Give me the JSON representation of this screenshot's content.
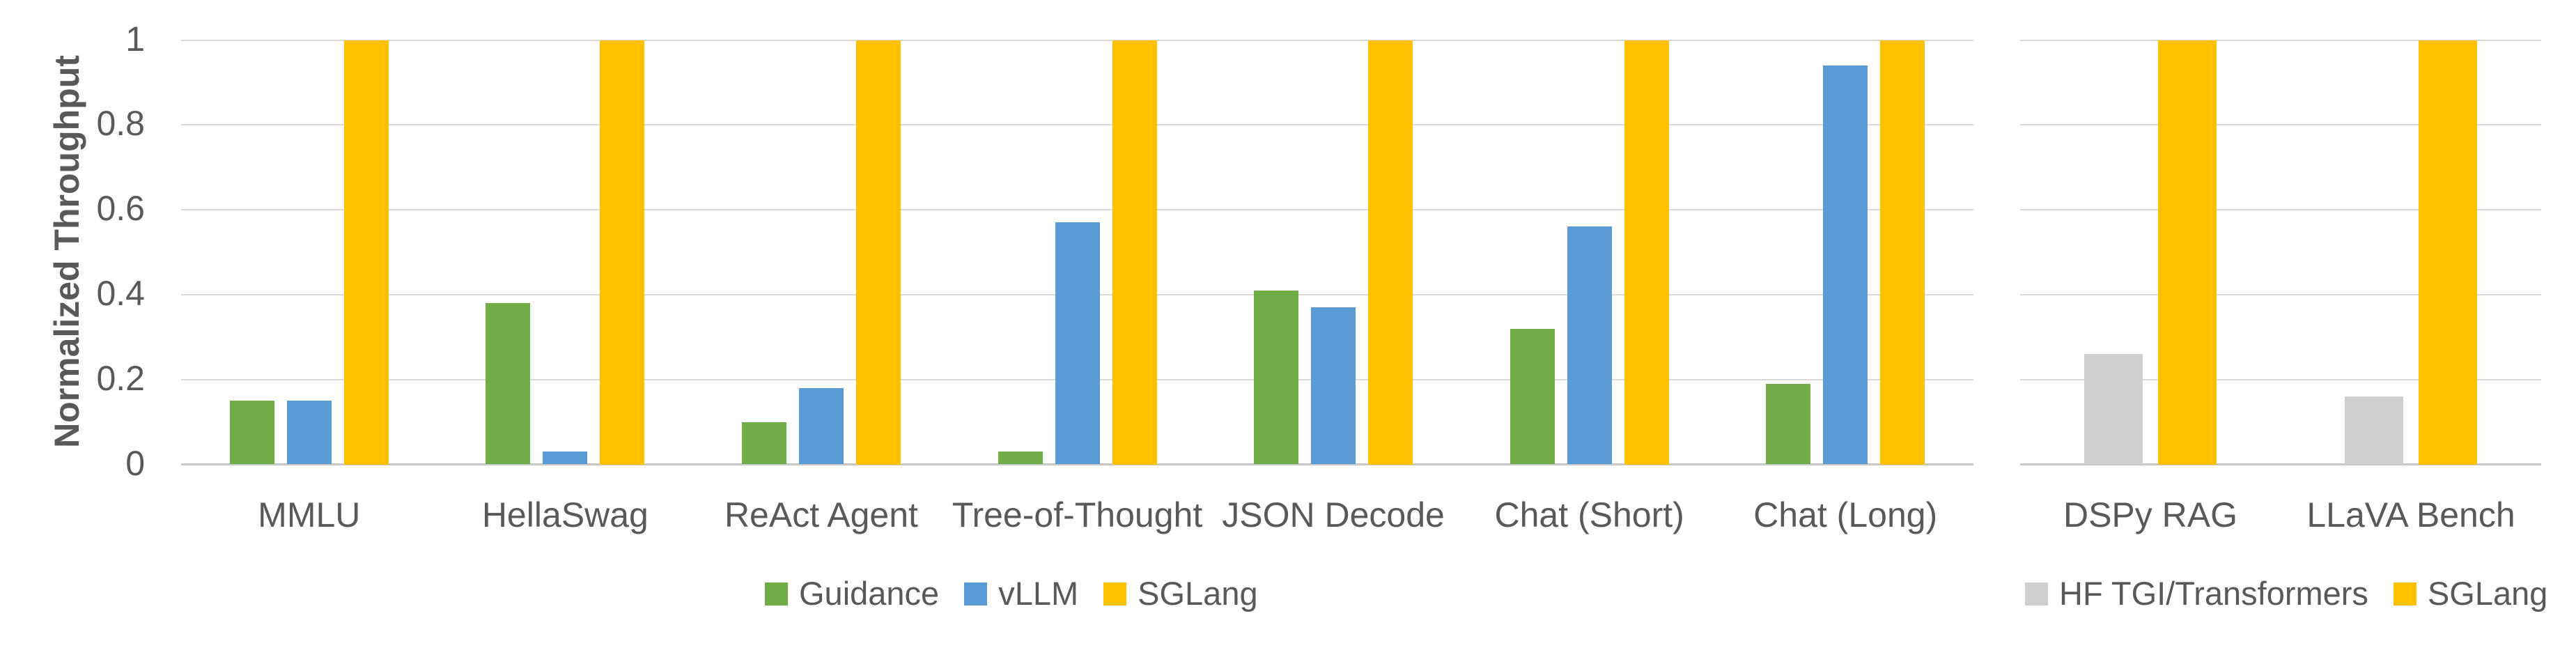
{
  "figure": {
    "background": "#FFFFFF",
    "text_color": "#595959",
    "gridline_color": "#D9D9D9",
    "axis_line_color": "#C8C8C8"
  },
  "chart_data": [
    {
      "type": "bar",
      "title": "",
      "categories": [
        "MMLU",
        "HellaSwag",
        "ReAct Agent",
        "Tree-of-Thought",
        "JSON Decode",
        "Chat (Short)",
        "Chat (Long)"
      ],
      "series": [
        {
          "name": "Guidance",
          "color": "#70AD47",
          "values": [
            0.15,
            0.38,
            0.1,
            0.03,
            0.41,
            0.32,
            0.19
          ]
        },
        {
          "name": "vLLM",
          "color": "#5B9BD5",
          "values": [
            0.15,
            0.03,
            0.18,
            0.57,
            0.37,
            0.56,
            0.94
          ]
        },
        {
          "name": "SGLang",
          "color": "#FFC000",
          "values": [
            1,
            1,
            1,
            1,
            1,
            1,
            1
          ]
        }
      ],
      "xlabel": "",
      "ylabel": "Normalized Throughput",
      "ylim": [
        0,
        1
      ],
      "yticks": [
        0,
        0.2,
        0.4,
        0.6,
        0.8,
        1
      ],
      "ytick_labels": [
        "0",
        "0.2",
        "0.4",
        "0.6",
        "0.8",
        "1"
      ],
      "grid": true,
      "legend_position": "bottom"
    },
    {
      "type": "bar",
      "title": "",
      "categories": [
        "DSPy RAG",
        "LLaVA Bench"
      ],
      "series": [
        {
          "name": "HF TGI/Transformers",
          "color": "#D0CECE",
          "values": [
            0.26,
            0.16
          ]
        },
        {
          "name": "SGLang",
          "color": "#FFC000",
          "values": [
            1,
            1
          ]
        }
      ],
      "xlabel": "",
      "ylabel": "",
      "ylim": [
        0,
        1
      ],
      "yticks": [
        0,
        0.2,
        0.4,
        0.6,
        0.8,
        1
      ],
      "ytick_labels": [
        "0",
        "0.2",
        "0.4",
        "0.6",
        "0.8",
        "1"
      ],
      "grid": true,
      "legend_position": "bottom"
    }
  ]
}
